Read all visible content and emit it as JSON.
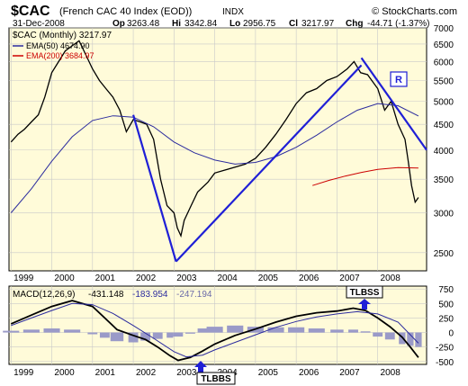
{
  "header": {
    "symbol": "$CAC",
    "description": "(French CAC 40 Index (EOD))",
    "exchange": "INDX",
    "date": "31-Dec-2008",
    "op_label": "Op",
    "op": "3263.48",
    "hi_label": "Hi",
    "hi": "3342.84",
    "lo_label": "Lo",
    "lo": "2956.75",
    "cl_label": "Cl",
    "cl": "3217.97",
    "chg_label": "Chg",
    "chg": "-44.71 (-1.37%)",
    "copyright": "© StockCharts.com"
  },
  "legend": {
    "main": "$CAC (Monthly) 3217.97",
    "ema50": "EMA(50) 4674.90",
    "ema200": "EMA(200) 3684.97"
  },
  "annotations": {
    "resistance_label": "R",
    "tlbss": "TLBSS",
    "tlbbs": "TLBBS"
  },
  "macd": {
    "label": "MACD(12,26,9)",
    "macd_value": "-431.148",
    "signal_value": "-183.954",
    "hist_value": "-247.194"
  },
  "colors": {
    "panel_bg": "#fffbd9",
    "trendline": "#1f1fd6",
    "ema50": "#2b2b9e",
    "ema200": "#cc0000",
    "histogram": "#9a9ac8",
    "price": "#000000"
  },
  "chart_data": [
    {
      "type": "line",
      "scale": "log",
      "x_labels": [
        "1999",
        "2000",
        "2001",
        "2002",
        "2003",
        "2004",
        "2005",
        "2006",
        "2007",
        "2008"
      ],
      "ylim": [
        2300,
        7000
      ],
      "y_ticks": [
        2500,
        3000,
        3500,
        4000,
        4500,
        5000,
        5500,
        6000,
        6500,
        7000
      ],
      "grid": true,
      "legend_position": "top-left",
      "series": [
        {
          "name": "$CAC (Monthly) 3217.97",
          "points": [
            [
              1999.0,
              4150
            ],
            [
              1999.17,
              4300
            ],
            [
              1999.33,
              4400
            ],
            [
              1999.5,
              4550
            ],
            [
              1999.67,
              4700
            ],
            [
              1999.83,
              5100
            ],
            [
              2000.0,
              5700
            ],
            [
              2000.17,
              6000
            ],
            [
              2000.33,
              6300
            ],
            [
              2000.5,
              6450
            ],
            [
              2000.67,
              6600
            ],
            [
              2000.83,
              6200
            ],
            [
              2001.0,
              5800
            ],
            [
              2001.17,
              5500
            ],
            [
              2001.33,
              5300
            ],
            [
              2001.5,
              5100
            ],
            [
              2001.67,
              4800
            ],
            [
              2001.83,
              4350
            ],
            [
              2002.0,
              4600
            ],
            [
              2002.17,
              4550
            ],
            [
              2002.33,
              4500
            ],
            [
              2002.5,
              4200
            ],
            [
              2002.67,
              3500
            ],
            [
              2002.83,
              3100
            ],
            [
              2003.0,
              3000
            ],
            [
              2003.08,
              2800
            ],
            [
              2003.17,
              2700
            ],
            [
              2003.25,
              2900
            ],
            [
              2003.42,
              3100
            ],
            [
              2003.58,
              3300
            ],
            [
              2003.83,
              3450
            ],
            [
              2004.0,
              3600
            ],
            [
              2004.25,
              3650
            ],
            [
              2004.5,
              3700
            ],
            [
              2004.75,
              3750
            ],
            [
              2005.0,
              3850
            ],
            [
              2005.25,
              4050
            ],
            [
              2005.5,
              4300
            ],
            [
              2005.75,
              4600
            ],
            [
              2006.0,
              4950
            ],
            [
              2006.25,
              5200
            ],
            [
              2006.5,
              5300
            ],
            [
              2006.75,
              5500
            ],
            [
              2007.0,
              5600
            ],
            [
              2007.25,
              5800
            ],
            [
              2007.42,
              6000
            ],
            [
              2007.58,
              5700
            ],
            [
              2007.75,
              5650
            ],
            [
              2008.0,
              5300
            ],
            [
              2008.17,
              4800
            ],
            [
              2008.33,
              5000
            ],
            [
              2008.5,
              4500
            ],
            [
              2008.67,
              4200
            ],
            [
              2008.75,
              3800
            ],
            [
              2008.83,
              3400
            ],
            [
              2008.92,
              3150
            ],
            [
              2009.0,
              3218
            ]
          ]
        },
        {
          "name": "EMA(50) 4674.90",
          "points": [
            [
              1999.0,
              3000
            ],
            [
              1999.5,
              3350
            ],
            [
              2000.0,
              3800
            ],
            [
              2000.5,
              4250
            ],
            [
              2001.0,
              4580
            ],
            [
              2001.5,
              4680
            ],
            [
              2002.0,
              4650
            ],
            [
              2002.5,
              4450
            ],
            [
              2003.0,
              4150
            ],
            [
              2003.5,
              3950
            ],
            [
              2004.0,
              3820
            ],
            [
              2004.5,
              3750
            ],
            [
              2005.0,
              3780
            ],
            [
              2005.5,
              3880
            ],
            [
              2006.0,
              4050
            ],
            [
              2006.5,
              4280
            ],
            [
              2007.0,
              4550
            ],
            [
              2007.5,
              4800
            ],
            [
              2008.0,
              4950
            ],
            [
              2008.5,
              4900
            ],
            [
              2009.0,
              4675
            ]
          ]
        },
        {
          "name": "EMA(200) 3684.97",
          "points": [
            [
              2006.4,
              3400
            ],
            [
              2006.8,
              3480
            ],
            [
              2007.2,
              3550
            ],
            [
              2007.6,
              3610
            ],
            [
              2008.0,
              3660
            ],
            [
              2008.5,
              3690
            ],
            [
              2009.0,
              3685
            ]
          ]
        }
      ],
      "trendlines": [
        {
          "name": "trendline-2002-2003",
          "from": [
            2002.0,
            4700
          ],
          "to": [
            2003.05,
            2400
          ]
        },
        {
          "name": "support-trendline-2003-2007",
          "from": [
            2003.05,
            2400
          ],
          "to": [
            2007.6,
            5900
          ]
        },
        {
          "name": "resistance-trendline-2007-2009",
          "from": [
            2007.6,
            6100
          ],
          "to": [
            2009.2,
            4000
          ]
        }
      ]
    },
    {
      "type": "line",
      "x_labels": [
        "1999",
        "2000",
        "2001",
        "2002",
        "2003",
        "2004",
        "2005",
        "2006",
        "2007",
        "2008"
      ],
      "ylim": [
        -550,
        800
      ],
      "y_ticks": [
        750,
        500,
        250,
        0,
        -250,
        -500
      ],
      "grid": true,
      "series": [
        {
          "name": "MACD",
          "points": [
            [
              1999.0,
              150
            ],
            [
              1999.5,
              300
            ],
            [
              2000.0,
              450
            ],
            [
              2000.5,
              550
            ],
            [
              2001.0,
              450
            ],
            [
              2001.3,
              250
            ],
            [
              2001.6,
              50
            ],
            [
              2002.0,
              -50
            ],
            [
              2002.3,
              -120
            ],
            [
              2002.6,
              -250
            ],
            [
              2002.9,
              -400
            ],
            [
              2003.1,
              -480
            ],
            [
              2003.4,
              -430
            ],
            [
              2003.7,
              -320
            ],
            [
              2004.0,
              -200
            ],
            [
              2004.5,
              -50
            ],
            [
              2005.0,
              60
            ],
            [
              2005.5,
              180
            ],
            [
              2006.0,
              280
            ],
            [
              2006.5,
              340
            ],
            [
              2007.0,
              370
            ],
            [
              2007.4,
              420
            ],
            [
              2007.7,
              380
            ],
            [
              2008.0,
              250
            ],
            [
              2008.3,
              100
            ],
            [
              2008.6,
              -80
            ],
            [
              2008.8,
              -250
            ],
            [
              2009.0,
              -431
            ]
          ]
        },
        {
          "name": "Signal",
          "points": [
            [
              1999.0,
              120
            ],
            [
              1999.5,
              250
            ],
            [
              2000.0,
              380
            ],
            [
              2000.5,
              500
            ],
            [
              2001.0,
              480
            ],
            [
              2001.5,
              330
            ],
            [
              2002.0,
              120
            ],
            [
              2002.5,
              -100
            ],
            [
              2003.0,
              -330
            ],
            [
              2003.3,
              -420
            ],
            [
              2003.7,
              -390
            ],
            [
              2004.0,
              -300
            ],
            [
              2004.5,
              -170
            ],
            [
              2005.0,
              -40
            ],
            [
              2005.5,
              90
            ],
            [
              2006.0,
              190
            ],
            [
              2006.5,
              270
            ],
            [
              2007.0,
              320
            ],
            [
              2007.5,
              360
            ],
            [
              2008.0,
              320
            ],
            [
              2008.5,
              180
            ],
            [
              2009.0,
              -184
            ]
          ]
        }
      ],
      "histogram": {
        "name": "Histogram",
        "points": [
          [
            1999.0,
            30
          ],
          [
            1999.5,
            50
          ],
          [
            2000.0,
            70
          ],
          [
            2000.5,
            50
          ],
          [
            2001.0,
            -30
          ],
          [
            2001.3,
            -90
          ],
          [
            2001.6,
            -150
          ],
          [
            2002.0,
            -170
          ],
          [
            2002.3,
            -140
          ],
          [
            2002.6,
            -110
          ],
          [
            2002.9,
            -90
          ],
          [
            2003.1,
            -70
          ],
          [
            2003.4,
            -20
          ],
          [
            2003.7,
            70
          ],
          [
            2004.0,
            100
          ],
          [
            2004.5,
            120
          ],
          [
            2005.0,
            100
          ],
          [
            2005.5,
            90
          ],
          [
            2006.0,
            90
          ],
          [
            2006.5,
            70
          ],
          [
            2007.0,
            50
          ],
          [
            2007.4,
            50
          ],
          [
            2007.7,
            20
          ],
          [
            2008.0,
            -70
          ],
          [
            2008.3,
            -120
          ],
          [
            2008.6,
            -200
          ],
          [
            2008.8,
            -230
          ],
          [
            2009.0,
            -247
          ]
        ]
      }
    }
  ]
}
